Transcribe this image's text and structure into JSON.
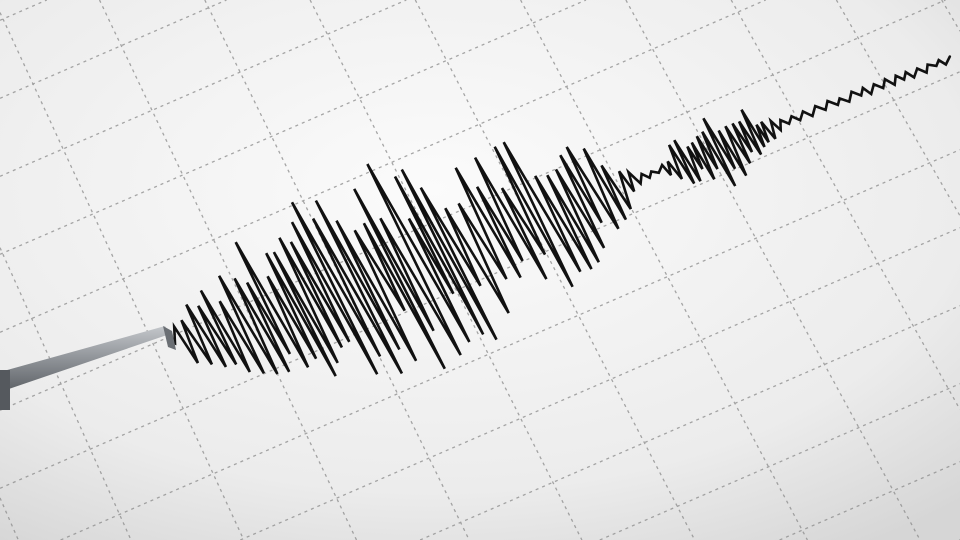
{
  "scene": {
    "subject": "seismograph-trace",
    "colors": {
      "paper_light": "#fafafa",
      "paper_dark": "#d9d9d9",
      "grid": "#8a8a8a",
      "trace": "#111111",
      "needle": "#8f9398"
    }
  }
}
